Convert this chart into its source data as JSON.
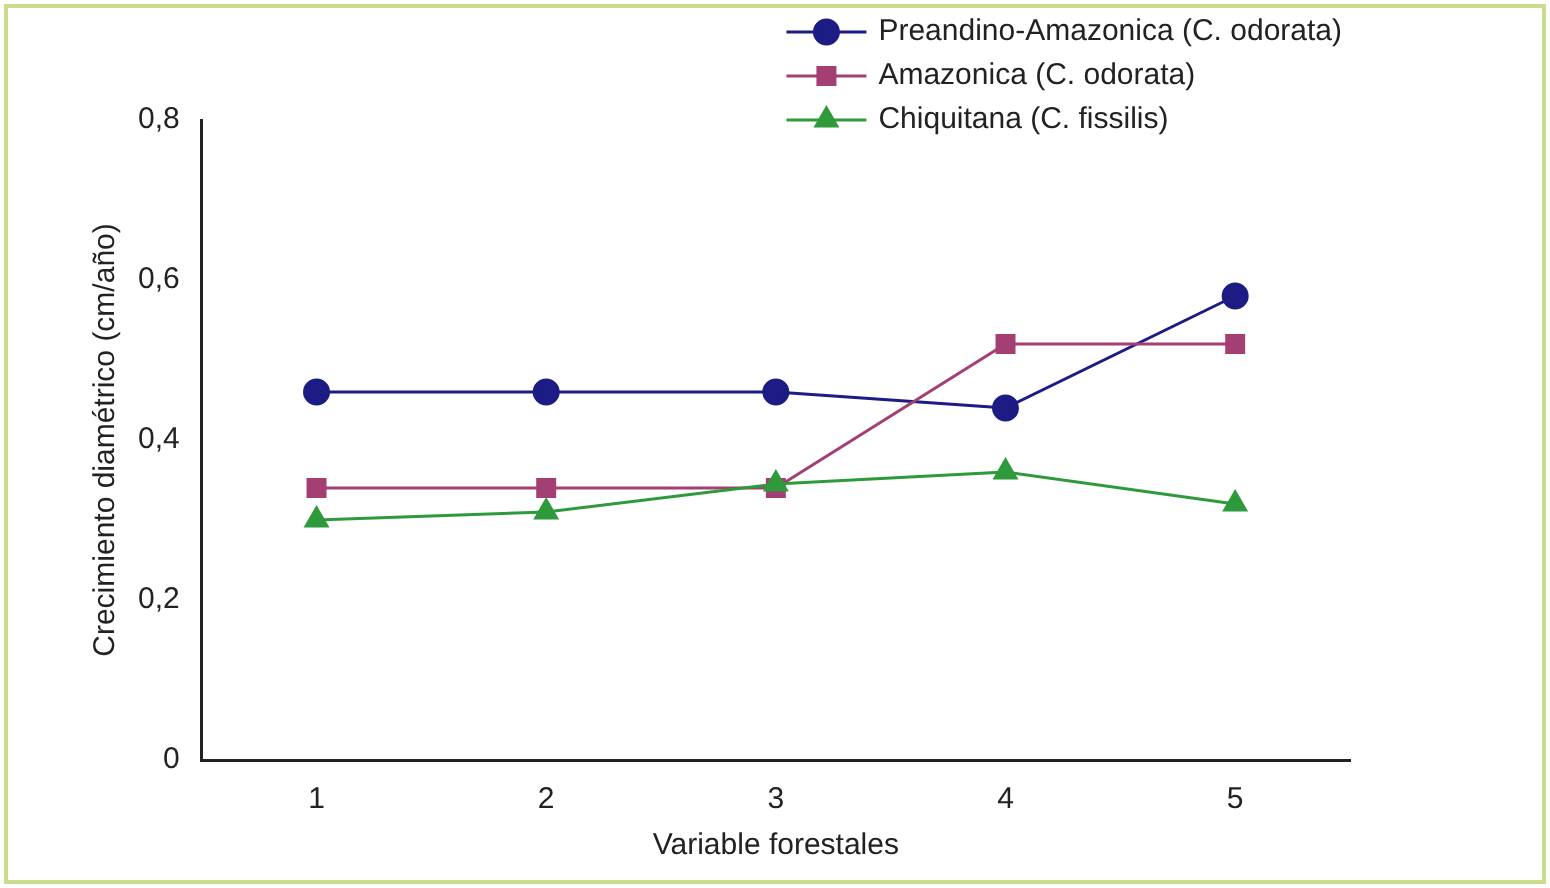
{
  "chart_data": {
    "type": "line",
    "xlabel": "Variable forestales",
    "ylabel": "Crecimiento diamétrico (cm/año)",
    "categories": [
      "1",
      "2",
      "3",
      "4",
      "5"
    ],
    "series": [
      {
        "name": "Preandino-Amazonica (C. odorata)",
        "color": "#1c1c84",
        "marker": "circle",
        "values": [
          0.46,
          0.46,
          0.46,
          0.44,
          0.58
        ]
      },
      {
        "name": "Amazonica (C. odorata)",
        "color": "#a33f72",
        "marker": "square",
        "values": [
          0.34,
          0.34,
          0.34,
          0.52,
          0.52
        ]
      },
      {
        "name": "Chiquitana (C. fissilis)",
        "color": "#2e9a3c",
        "marker": "triangle",
        "values": [
          0.3,
          0.31,
          0.345,
          0.36,
          0.32
        ]
      }
    ],
    "ylim": [
      0,
      0.8
    ],
    "yticks": [
      {
        "value": 0,
        "label": "0"
      },
      {
        "value": 0.2,
        "label": "0,2"
      },
      {
        "value": 0.4,
        "label": "0,4"
      },
      {
        "value": 0.6,
        "label": "0,6"
      },
      {
        "value": 0.8,
        "label": "0,8"
      }
    ],
    "grid": false,
    "legend": "top right",
    "line_style": "solid"
  }
}
